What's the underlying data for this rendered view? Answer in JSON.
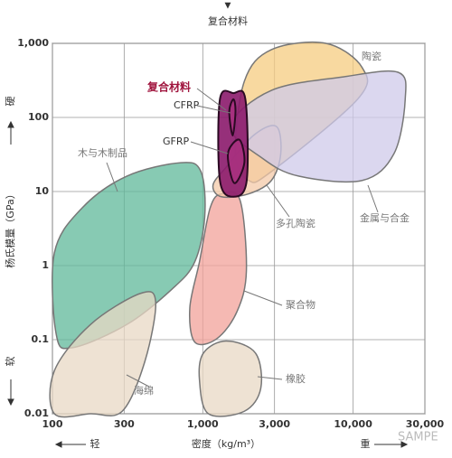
{
  "chart_data": {
    "type": "region",
    "title": "复合材料",
    "x_label": "密度（kg/m³）",
    "y_label": "杨氏模量（GPa）",
    "x_low": "轻",
    "x_high": "重",
    "y_high": "硬",
    "y_low": "软",
    "watermark": "SAMPE",
    "xlog": true,
    "ylog": true,
    "grid": true,
    "xlim": [
      100,
      30000
    ],
    "ylim": [
      0.01,
      1000
    ],
    "xticks": [
      100,
      300,
      {
        "value": 1000,
        "label": "1,000"
      },
      {
        "value": 3000,
        "label": "3,000"
      },
      {
        "value": 10000,
        "label": "10,000"
      },
      {
        "value": 30000,
        "label": "30,000"
      }
    ],
    "yticks": [
      {
        "value": 1000,
        "label": "1,000"
      },
      100,
      10,
      1,
      0.1,
      0.01
    ],
    "regions": [
      {
        "name": "木与木制品",
        "color": "#5fb89a",
        "x": [
          103,
          158,
          312,
          716,
          972,
          1030,
          884,
          623,
          312,
          136,
          106
        ],
        "y": [
          1.48,
          6.04,
          16.1,
          24.5,
          18.6,
          4.56,
          1.12,
          0.48,
          0.16,
          0.078,
          0.118
        ]
      },
      {
        "name": "海绵",
        "color": "#e8d8c4",
        "x": [
          103,
          179,
          384,
          486,
          412,
          291,
          179,
          103
        ],
        "y": [
          0.038,
          0.16,
          0.42,
          0.32,
          0.051,
          0.0108,
          0.01,
          0.01
        ]
      },
      {
        "name": "聚合物",
        "color": "#f2a29a",
        "x": [
          1120,
          1330,
          1770,
          1950,
          1690,
          1240,
          884,
          820,
          950
        ],
        "y": [
          6.04,
          9.3,
          7.6,
          0.85,
          0.24,
          0.103,
          0.093,
          0.27,
          1.12
        ]
      },
      {
        "name": "橡胶",
        "color": "#e8d8c4",
        "x": [
          1010,
          1430,
          2240,
          2430,
          1890,
          1090,
          950
        ],
        "y": [
          0.066,
          0.096,
          0.066,
          0.022,
          0.0108,
          0.01,
          0.029
        ]
      },
      {
        "name": "陶瓷",
        "color": "#f6cc80",
        "x": [
          1890,
          2860,
          6600,
          11500,
          10700,
          2860,
          2020,
          1650
        ],
        "y": [
          308,
          822,
          1000,
          468,
          176,
          18.6,
          14.1,
          32.5
        ]
      },
      {
        "name": "多孔陶瓷",
        "color": "#f4c9a8",
        "x": [
          1170,
          1430,
          2170,
          3080,
          3300,
          2860,
          2020,
          1330
        ],
        "y": [
          12.2,
          21.3,
          57,
          75.8,
          32.5,
          14.1,
          9.3,
          8.5
        ]
      },
      {
        "name": "金属与合金",
        "color": "#cfc9ea",
        "x": [
          1530,
          2860,
          8700,
          19900,
          22200,
          18700,
          11500,
          4360,
          2500
        ],
        "y": [
          75.8,
          232,
          354,
          407,
          176,
          32.5,
          14.1,
          16.1,
          28
        ]
      },
      {
        "name": "复合材料",
        "color": "#8b1a6b",
        "x": [
          1300,
          1600,
          1920,
          1960,
          1600,
          1300
        ],
        "y": [
          176,
          213,
          176,
          14.1,
          8.5,
          14.1
        ]
      },
      {
        "name": "CFRP",
        "color": "#a8317f",
        "x": [
          1500,
          1600,
          1650,
          1580
        ],
        "y": [
          120,
          176,
          120,
          57
        ]
      },
      {
        "name": "GFRP",
        "color": "#a8317f",
        "x": [
          1470,
          1750,
          1890,
          1620
        ],
        "y": [
          32.5,
          50,
          24.5,
          13
        ]
      }
    ]
  }
}
